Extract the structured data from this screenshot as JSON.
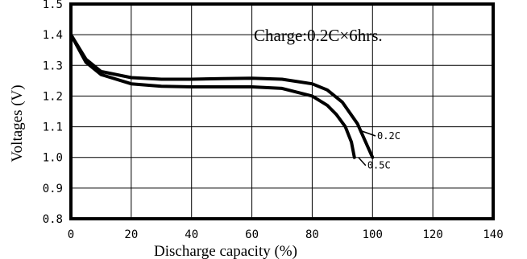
{
  "chart_data": {
    "type": "line",
    "title": "",
    "xlabel": "Discharge capacity (%)",
    "ylabel": "Voltages (V)",
    "xlim": [
      0,
      140
    ],
    "ylim": [
      0.8,
      1.5
    ],
    "x_ticks": [
      "0",
      "20",
      "40",
      "60",
      "80",
      "100",
      "120",
      "140"
    ],
    "y_ticks": [
      "0.8",
      "0.9",
      "1.0",
      "1.1",
      "1.2",
      "1.3",
      "1.4",
      "1.5"
    ],
    "grid": true,
    "annotation": "Charge:0.2C×6hrs.",
    "series": [
      {
        "name": "0.2C",
        "x": [
          0,
          5,
          10,
          20,
          30,
          40,
          50,
          60,
          70,
          80,
          85,
          90,
          95,
          100
        ],
        "y": [
          1.4,
          1.32,
          1.28,
          1.26,
          1.255,
          1.255,
          1.257,
          1.258,
          1.255,
          1.24,
          1.22,
          1.18,
          1.11,
          1.0
        ]
      },
      {
        "name": "0.5C",
        "x": [
          0,
          5,
          10,
          20,
          30,
          40,
          50,
          60,
          70,
          80,
          85,
          88,
          91,
          93,
          94
        ],
        "y": [
          1.4,
          1.31,
          1.27,
          1.24,
          1.232,
          1.23,
          1.23,
          1.23,
          1.225,
          1.2,
          1.17,
          1.14,
          1.1,
          1.05,
          1.0
        ]
      }
    ]
  }
}
